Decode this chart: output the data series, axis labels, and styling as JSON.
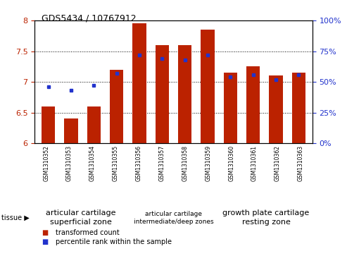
{
  "title": "GDS5434 / 10767912",
  "samples": [
    "GSM1310352",
    "GSM1310353",
    "GSM1310354",
    "GSM1310355",
    "GSM1310356",
    "GSM1310357",
    "GSM1310358",
    "GSM1310359",
    "GSM1310360",
    "GSM1310361",
    "GSM1310362",
    "GSM1310363"
  ],
  "red_values": [
    6.6,
    6.4,
    6.6,
    7.2,
    7.95,
    7.6,
    7.6,
    7.85,
    7.15,
    7.25,
    7.1,
    7.15
  ],
  "blue_pct": [
    46,
    43,
    47,
    57,
    72,
    69,
    68,
    72,
    54,
    56,
    52,
    56
  ],
  "ymin": 6.0,
  "ymax": 8.0,
  "yticks": [
    6.0,
    6.5,
    7.0,
    7.5,
    8.0
  ],
  "ytick_labels": [
    "6",
    "6.5",
    "7",
    "7.5",
    "8"
  ],
  "y2ticks": [
    0,
    25,
    50,
    75,
    100
  ],
  "y2ticklabels": [
    "0%",
    "25%",
    "50%",
    "75%",
    "100%"
  ],
  "red_color": "#bb2200",
  "blue_color": "#2233cc",
  "bar_width": 0.6,
  "group_labels": [
    "articular cartilage\nsuperficial zone",
    "articular cartilage\nintermediate/deep zones",
    "growth plate cartilage\nresting zone"
  ],
  "group_ranges": [
    [
      0,
      3
    ],
    [
      4,
      7
    ],
    [
      8,
      11
    ]
  ],
  "group_label_sizes": [
    8,
    6.5,
    8
  ],
  "group_color": "#99dd99",
  "xtick_bg": "#cccccc",
  "legend_red": "transformed count",
  "legend_blue": "percentile rank within the sample",
  "plot_bg": "#ffffff"
}
